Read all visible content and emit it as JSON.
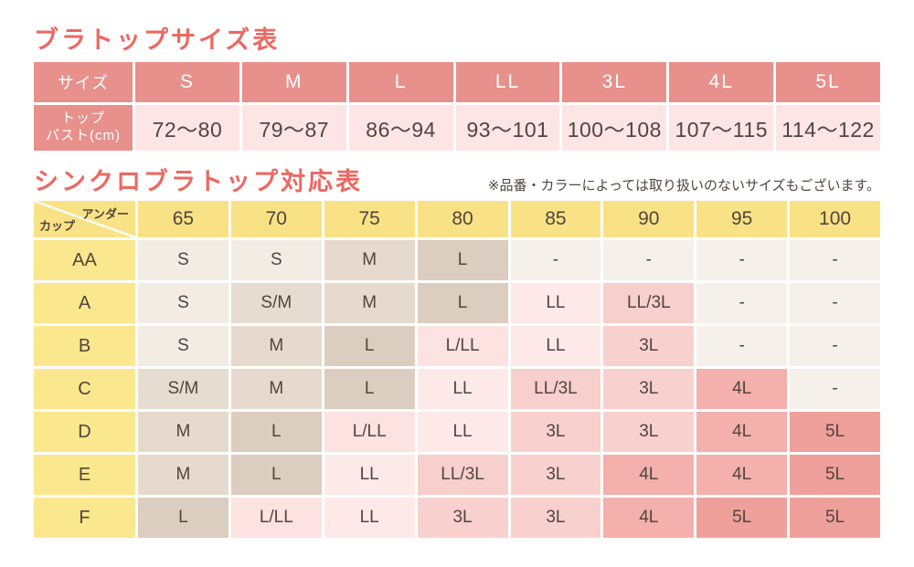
{
  "size_table": {
    "title": "ブラトップサイズ表",
    "header": [
      "サイズ",
      "S",
      "M",
      "L",
      "LL",
      "3L",
      "4L",
      "5L"
    ],
    "row_label_line1": "トップ",
    "row_label_line2": "バスト(cm)",
    "values": [
      "72〜80",
      "79〜87",
      "86〜94",
      "93〜101",
      "100〜108",
      "107〜115",
      "114〜122"
    ]
  },
  "correspondence_table": {
    "title": "シンクロブラトップ対応表",
    "note": "※品番・カラーによっては取り扱いのないサイズもございます。",
    "corner_top": "アンダー",
    "corner_bottom": "カップ",
    "columns": [
      "65",
      "70",
      "75",
      "80",
      "85",
      "90",
      "95",
      "100"
    ],
    "rows": [
      {
        "cup": "AA",
        "cells": [
          "S",
          "S",
          "M",
          "L",
          "-",
          "-",
          "-",
          "-"
        ]
      },
      {
        "cup": "A",
        "cells": [
          "S",
          "S/M",
          "M",
          "L",
          "LL",
          "LL/3L",
          "-",
          "-"
        ]
      },
      {
        "cup": "B",
        "cells": [
          "S",
          "M",
          "L",
          "L/LL",
          "LL",
          "3L",
          "-",
          "-"
        ]
      },
      {
        "cup": "C",
        "cells": [
          "S/M",
          "M",
          "L",
          "LL",
          "LL/3L",
          "3L",
          "4L",
          "-"
        ]
      },
      {
        "cup": "D",
        "cells": [
          "M",
          "L",
          "L/LL",
          "LL",
          "3L",
          "3L",
          "4L",
          "5L"
        ]
      },
      {
        "cup": "E",
        "cells": [
          "M",
          "L",
          "LL",
          "LL/3L",
          "3L",
          "4L",
          "4L",
          "5L"
        ]
      },
      {
        "cup": "F",
        "cells": [
          "L",
          "L/LL",
          "LL",
          "3L",
          "3L",
          "4L",
          "5L",
          "5L"
        ]
      }
    ],
    "size_colors": {
      "S": "#f2ece5",
      "S/M": "#e7dcd1",
      "M": "#e5dacd",
      "L": "#dbcdbf",
      "L/LL": "#fce2e0",
      "LL": "#fdeae8",
      "LL/3L": "#f7cfcc",
      "3L": "#f8d1ce",
      "4L": "#f3b0ac",
      "5L": "#efa09b",
      "-": "#f5f0ea"
    }
  },
  "colors": {
    "title_red": "#ec6862",
    "header_salmon": "#e8908b",
    "value_pink": "#fce5e4",
    "header_yellow": "#f9e285",
    "cup_yellow": "#fbe78d",
    "text_dark": "#51453d"
  },
  "chart_data": [
    {
      "type": "table",
      "title": "ブラトップサイズ表",
      "columns": [
        "サイズ",
        "S",
        "M",
        "L",
        "LL",
        "3L",
        "4L",
        "5L"
      ],
      "rows": [
        [
          "トップバスト(cm)",
          "72〜80",
          "79〜87",
          "86〜94",
          "93〜101",
          "100〜108",
          "107〜115",
          "114〜122"
        ]
      ]
    },
    {
      "type": "table",
      "title": "シンクロブラトップ対応表",
      "note": "※品番・カラーによっては取り扱いのないサイズもございます。",
      "columns": [
        "カップ＼アンダー",
        "65",
        "70",
        "75",
        "80",
        "85",
        "90",
        "95",
        "100"
      ],
      "rows": [
        [
          "AA",
          "S",
          "S",
          "M",
          "L",
          "-",
          "-",
          "-",
          "-"
        ],
        [
          "A",
          "S",
          "S/M",
          "M",
          "L",
          "LL",
          "LL/3L",
          "-",
          "-"
        ],
        [
          "B",
          "S",
          "M",
          "L",
          "L/LL",
          "LL",
          "3L",
          "-",
          "-"
        ],
        [
          "C",
          "S/M",
          "M",
          "L",
          "LL",
          "LL/3L",
          "3L",
          "4L",
          "-"
        ],
        [
          "D",
          "M",
          "L",
          "L/LL",
          "LL",
          "3L",
          "3L",
          "4L",
          "5L"
        ],
        [
          "E",
          "M",
          "L",
          "LL",
          "LL/3L",
          "3L",
          "4L",
          "4L",
          "5L"
        ],
        [
          "F",
          "L",
          "L/LL",
          "LL",
          "3L",
          "3L",
          "4L",
          "5L",
          "5L"
        ]
      ],
      "layout": "cell background encodes size: light beige (S) through tan (L) to pink (LL/3L) and salmon (5L); '-' cells off-white"
    }
  ]
}
